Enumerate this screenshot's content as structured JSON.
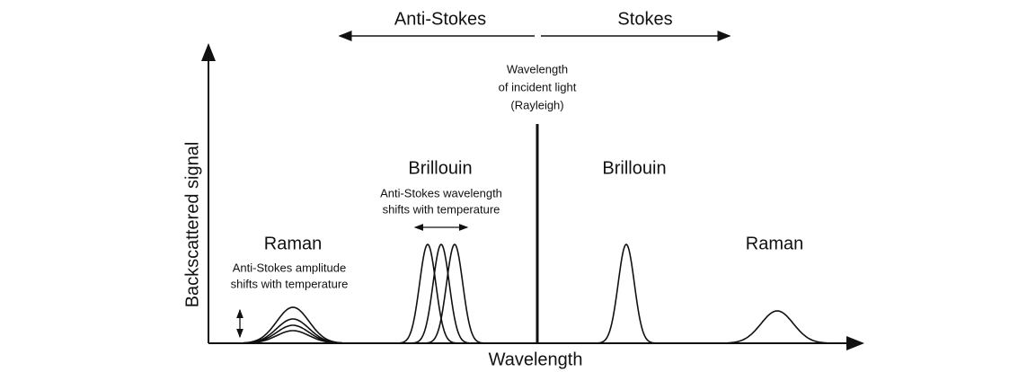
{
  "header": {
    "anti_stokes": "Anti-Stokes",
    "stokes": "Stokes"
  },
  "rayleigh": {
    "lines": [
      "Wavelength",
      "of incident light",
      "(Rayleigh)"
    ]
  },
  "axes": {
    "y_label": "Backscattered signal",
    "x_label": "Wavelength"
  },
  "brillouin": {
    "anti_stokes_label": "Brillouin",
    "stokes_label": "Brillouin",
    "note": [
      "Anti-Stokes wavelength",
      "shifts with temperature"
    ]
  },
  "raman": {
    "anti_stokes_label": "Raman",
    "stokes_label": "Raman",
    "note": [
      "Anti-Stokes amplitude",
      "shifts with temperature"
    ]
  }
}
